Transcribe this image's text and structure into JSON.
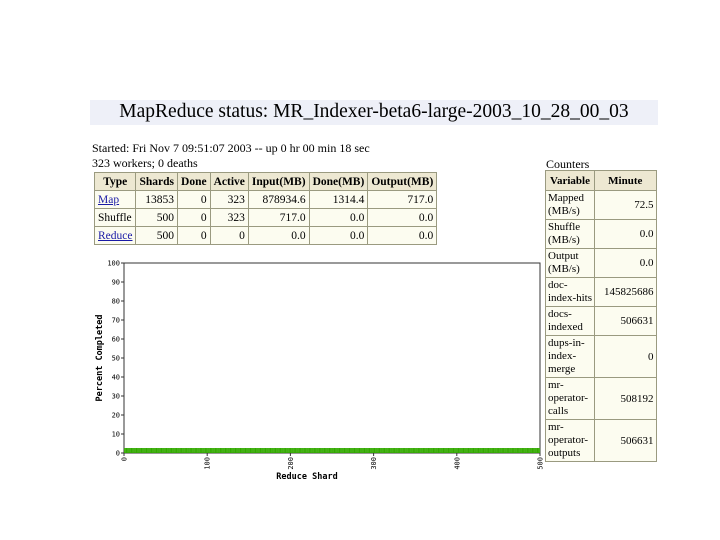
{
  "title": "MapReduce status: MR_Indexer-beta6-large-2003_10_28_00_03",
  "started": "Started: Fri Nov 7 09:51:07 2003 -- up 0 hr 00 min 18 sec",
  "workers": "323 workers; 0 deaths",
  "jobs": {
    "headers": [
      "Type",
      "Shards",
      "Done",
      "Active",
      "Input(MB)",
      "Done(MB)",
      "Output(MB)"
    ],
    "rows": [
      {
        "type": "Map",
        "link": true,
        "shards": "13853",
        "done": "0",
        "active": "323",
        "input": "878934.6",
        "done_mb": "1314.4",
        "output": "717.0"
      },
      {
        "type": "Shuffle",
        "link": false,
        "shards": "500",
        "done": "0",
        "active": "323",
        "input": "717.0",
        "done_mb": "0.0",
        "output": "0.0"
      },
      {
        "type": "Reduce",
        "link": true,
        "shards": "500",
        "done": "0",
        "active": "0",
        "input": "0.0",
        "done_mb": "0.0",
        "output": "0.0"
      }
    ]
  },
  "counters": {
    "label": "Counters",
    "headers": [
      "Variable",
      "Minute"
    ],
    "rows": [
      {
        "lines": [
          "Mapped",
          "(MB/s)"
        ],
        "value": "72.5"
      },
      {
        "lines": [
          "Shuffle",
          "(MB/s)"
        ],
        "value": "0.0"
      },
      {
        "lines": [
          "Output",
          "(MB/s)"
        ],
        "value": "0.0"
      },
      {
        "lines": [
          "doc-",
          "index-hits"
        ],
        "value": "145825686"
      },
      {
        "lines": [
          "docs-",
          "indexed"
        ],
        "value": "506631"
      },
      {
        "lines": [
          "dups-in-",
          "index-",
          "merge"
        ],
        "value": "0"
      },
      {
        "lines": [
          "mr-",
          "operator-",
          "calls"
        ],
        "value": "508192"
      },
      {
        "lines": [
          "mr-",
          "operator-",
          "outputs"
        ],
        "value": "506631"
      }
    ]
  },
  "chart_data": {
    "type": "bar",
    "xlabel": "Reduce Shard",
    "ylabel": "Percent Completed",
    "xlim": [
      0,
      500
    ],
    "ylim": [
      0,
      100
    ],
    "xticks": [
      0,
      100,
      200,
      300,
      400,
      500
    ],
    "yticks": [
      0,
      10,
      20,
      30,
      40,
      50,
      60,
      70,
      80,
      90,
      100
    ],
    "shards": 500,
    "values_all_shards": 0,
    "bar_color": "#33aa00"
  }
}
